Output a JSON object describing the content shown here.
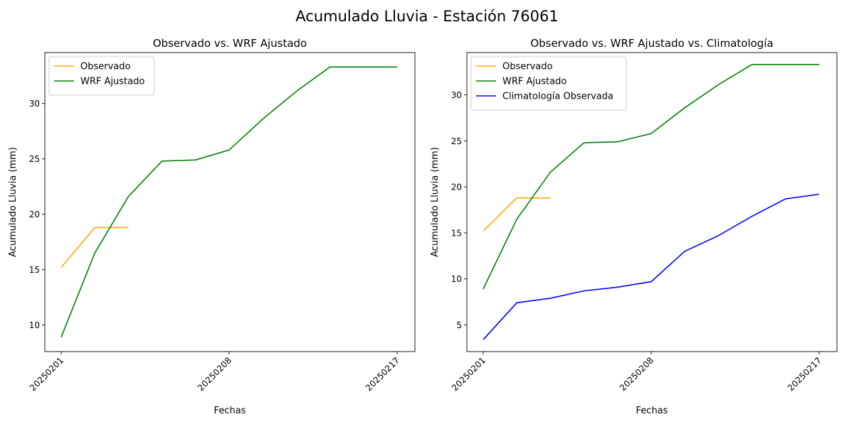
{
  "figure": {
    "title": "Acumulado Lluvia - Estación 76061"
  },
  "chart_data": [
    {
      "type": "line",
      "title": "Observado vs. WRF Ajustado",
      "xlabel": "Fechas",
      "ylabel": "Acumulado Lluvia (mm)",
      "x_ticks": [
        "20250201",
        "20250208",
        "20250217"
      ],
      "y_ticks": [
        10,
        15,
        20,
        25,
        30
      ],
      "ylim": [
        7.6,
        34.6
      ],
      "grid": false,
      "legend_position": "top-left",
      "series": [
        {
          "name": "Observado",
          "color": "#ffa500",
          "values": [
            15.2,
            18.8,
            18.8
          ]
        },
        {
          "name": "WRF Ajustado",
          "color": "#008000",
          "values": [
            8.9,
            16.5,
            21.6,
            24.8,
            24.9,
            25.8,
            28.6,
            31.1,
            33.3,
            33.3,
            33.3
          ]
        }
      ]
    },
    {
      "type": "line",
      "title": "Observado vs. WRF Ajustado vs. Climatología",
      "xlabel": "Fechas",
      "ylabel": "Acumulado Lluvia (mm)",
      "x_ticks": [
        "20250201",
        "20250208",
        "20250217"
      ],
      "y_ticks": [
        5,
        10,
        15,
        20,
        25,
        30
      ],
      "ylim": [
        2.1,
        34.6
      ],
      "grid": false,
      "legend_position": "top-left",
      "series": [
        {
          "name": "Observado",
          "color": "#ffa500",
          "values": [
            15.2,
            18.8,
            18.8
          ]
        },
        {
          "name": "WRF Ajustado",
          "color": "#008000",
          "values": [
            8.9,
            16.5,
            21.6,
            24.8,
            24.9,
            25.8,
            28.6,
            31.1,
            33.3,
            33.3,
            33.3
          ]
        },
        {
          "name": "Climatología Observada",
          "color": "#0000ff",
          "values": [
            3.4,
            7.4,
            7.9,
            8.7,
            9.1,
            9.7,
            13.0,
            14.7,
            16.8,
            18.7,
            19.2
          ]
        }
      ]
    }
  ]
}
